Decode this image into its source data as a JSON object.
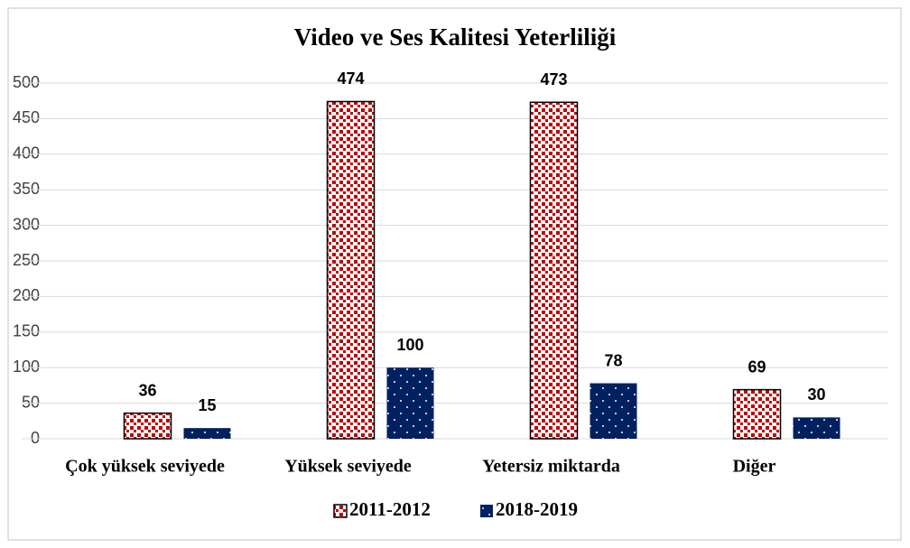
{
  "chart_data": {
    "type": "bar",
    "title": "Video ve Ses Kalitesi Yeterliliği",
    "categories": [
      "Çok yüksek seviyede",
      "Yüksek seviyede",
      "Yetersiz miktarda",
      "Diğer"
    ],
    "series": [
      {
        "name": "2011-2012",
        "color": "#c00000",
        "values": [
          36,
          474,
          473,
          69
        ]
      },
      {
        "name": "2018-2019",
        "color": "#002060",
        "values": [
          15,
          100,
          78,
          30
        ]
      }
    ],
    "ylim": [
      0,
      500
    ],
    "yticks": [
      0,
      50,
      100,
      150,
      200,
      250,
      300,
      350,
      400,
      450,
      500
    ],
    "grid": true,
    "legend": "bottom"
  }
}
